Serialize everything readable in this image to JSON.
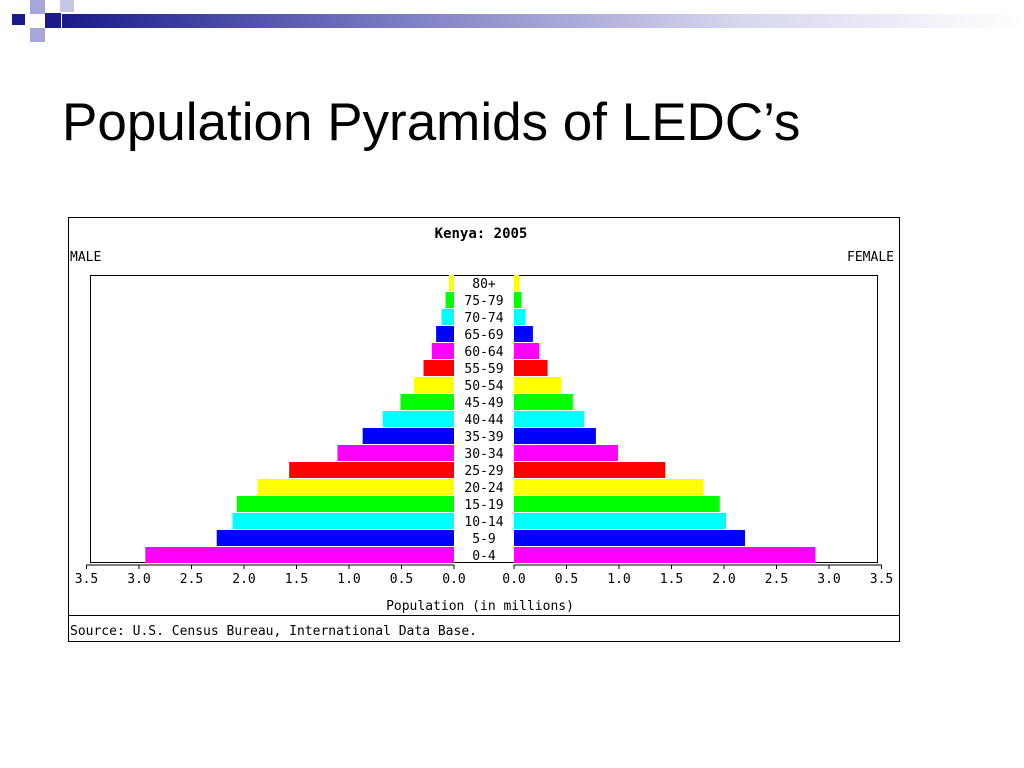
{
  "slide": {
    "title": "Population Pyramids of LEDC’s",
    "accent_colors": {
      "dark": "#1a1a8c",
      "light": "#a6a6d9"
    }
  },
  "chart_data": {
    "type": "bar",
    "subtype": "population-pyramid",
    "title": "Kenya: 2005",
    "left_label": "MALE",
    "right_label": "FEMALE",
    "xlabel": "Population (in millions)",
    "source": "Source: U.S. Census Bureau, International Data Base.",
    "xlim": [
      0,
      3.5
    ],
    "ticks": [
      "3.5",
      "3.0",
      "2.5",
      "2.0",
      "1.5",
      "1.0",
      "0.5",
      "0.0",
      "0.0",
      "0.5",
      "1.0",
      "1.5",
      "2.0",
      "2.5",
      "3.0",
      "3.5"
    ],
    "categories": [
      "80+",
      "75-79",
      "70-74",
      "65-69",
      "60-64",
      "55-59",
      "50-54",
      "45-49",
      "40-44",
      "35-39",
      "30-34",
      "25-29",
      "20-24",
      "15-19",
      "10-14",
      "5-9",
      "0-4"
    ],
    "series": [
      {
        "name": "MALE",
        "values": [
          0.05,
          0.08,
          0.12,
          0.17,
          0.21,
          0.29,
          0.38,
          0.51,
          0.68,
          0.87,
          1.11,
          1.57,
          1.87,
          2.07,
          2.11,
          2.26,
          2.94
        ]
      },
      {
        "name": "FEMALE",
        "values": [
          0.05,
          0.07,
          0.11,
          0.18,
          0.24,
          0.32,
          0.45,
          0.56,
          0.67,
          0.78,
          0.99,
          1.44,
          1.8,
          1.96,
          2.02,
          2.2,
          2.87
        ]
      }
    ],
    "bar_colors": [
      "#ffff00",
      "#00ff00",
      "#00ffff",
      "#0000ff",
      "#ff00ff",
      "#ff0000",
      "#ffff00",
      "#00ff00",
      "#00ffff",
      "#0000ff",
      "#ff00ff",
      "#ff0000",
      "#ffff00",
      "#00ff00",
      "#00ffff",
      "#0000ff",
      "#ff00ff"
    ],
    "grid": false
  }
}
